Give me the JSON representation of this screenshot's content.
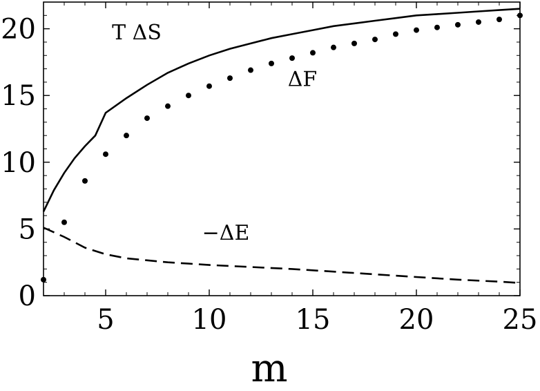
{
  "chart_data": {
    "type": "line",
    "xlabel": "m",
    "ylabel": "",
    "xlim": [
      2,
      25
    ],
    "ylim": [
      0,
      22
    ],
    "grid": false,
    "legend": "none",
    "xticks": [
      "5",
      "10",
      "15",
      "20",
      "25"
    ],
    "yticks": [
      "0",
      "5",
      "10",
      "15",
      "20"
    ],
    "annotations": [
      {
        "text": "T ΔS",
        "x": 6.5,
        "y": 19.2
      },
      {
        "text": "ΔF",
        "x": 14.5,
        "y": 15.7
      },
      {
        "text": "−ΔE",
        "x": 10.8,
        "y": 4.2
      }
    ],
    "series": [
      {
        "style": "solid",
        "x": [
          2,
          2.5,
          3,
          3.5,
          4,
          4.5,
          5,
          6,
          7,
          8,
          9,
          10,
          11,
          12,
          13,
          14,
          15,
          16,
          17,
          18,
          19,
          20,
          21,
          22,
          23,
          24,
          25
        ],
        "values": [
          6.3,
          7.9,
          9.2,
          10.3,
          11.2,
          12.0,
          13.7,
          14.8,
          15.8,
          16.7,
          17.4,
          18.0,
          18.5,
          18.9,
          19.3,
          19.6,
          19.9,
          20.2,
          20.4,
          20.6,
          20.8,
          21.0,
          21.1,
          21.2,
          21.3,
          21.4,
          21.5
        ]
      },
      {
        "style": "dotted",
        "x": [
          2,
          3,
          4,
          5,
          6,
          7,
          8,
          9,
          10,
          11,
          12,
          13,
          14,
          15,
          16,
          17,
          18,
          19,
          20,
          21,
          22,
          23,
          24,
          25
        ],
        "values": [
          1.2,
          5.5,
          8.6,
          10.6,
          12.0,
          13.3,
          14.2,
          15.0,
          15.7,
          16.3,
          16.9,
          17.4,
          17.8,
          18.2,
          18.6,
          18.9,
          19.2,
          19.6,
          19.9,
          20.1,
          20.3,
          20.5,
          20.7,
          21.0
        ]
      },
      {
        "style": "dashed",
        "x": [
          2,
          3,
          4,
          5,
          6,
          7,
          8,
          9,
          10,
          12,
          14,
          16,
          18,
          20,
          22,
          24,
          25
        ],
        "values": [
          5.1,
          4.4,
          3.6,
          3.1,
          2.8,
          2.65,
          2.5,
          2.4,
          2.3,
          2.15,
          2.0,
          1.8,
          1.6,
          1.4,
          1.2,
          1.05,
          0.95
        ]
      }
    ]
  }
}
